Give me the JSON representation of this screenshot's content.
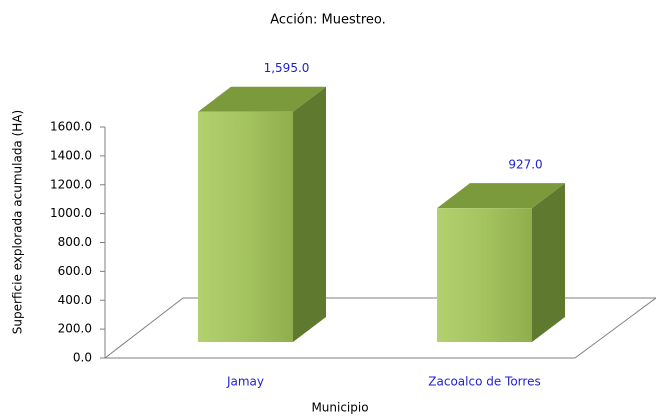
{
  "chart_data": {
    "type": "bar3d",
    "title": "Acción:  Muestreo.",
    "y_label": "Superficie explorada acumulada (HA)",
    "x_label": "Municipio",
    "categories": [
      "Jamay",
      "Zacoalco de Torres"
    ],
    "values": [
      1595,
      927
    ],
    "value_labels": [
      "1,595.0",
      "927.0"
    ],
    "color": "#9bbb59",
    "ylim": [
      0,
      1600
    ],
    "yticks": [
      {
        "value": 0,
        "label": "0.0"
      },
      {
        "value": 200,
        "label": "200.0"
      },
      {
        "value": 400,
        "label": "400.0"
      },
      {
        "value": 600,
        "label": "600.0"
      },
      {
        "value": 800,
        "label": "800.0"
      },
      {
        "value": 1000,
        "label": "1000.0"
      },
      {
        "value": 1200,
        "label": "1200.0"
      },
      {
        "value": 1400,
        "label": "1400.0"
      },
      {
        "value": 1600,
        "label": "1600.0"
      }
    ]
  }
}
